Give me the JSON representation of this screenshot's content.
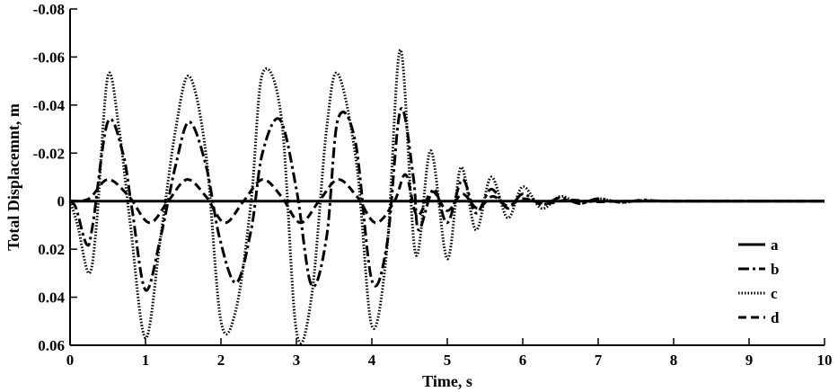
{
  "chart_data": {
    "type": "line",
    "xlabel": "Time, s",
    "ylabel": "Total Displacemnt, m",
    "xlim": [
      0,
      10
    ],
    "ylim": [
      -0.08,
      0.06
    ],
    "y_axis_inverted": true,
    "grid": false,
    "legend_position": "right",
    "x_ticks": [
      "0",
      "1",
      "2",
      "3",
      "4",
      "5",
      "6",
      "7",
      "8",
      "9",
      "10"
    ],
    "y_ticks": [
      "-0.08",
      "-0.06",
      "-0.04",
      "-0.02",
      "0",
      "0.02",
      "0.04",
      "0.06"
    ],
    "series": [
      {
        "name": "a",
        "style": "solid",
        "x": [
          0,
          10
        ],
        "y": [
          0,
          0
        ]
      },
      {
        "name": "b",
        "style": "dash-dot",
        "x": [
          0,
          0.08,
          0.22,
          0.3,
          0.5,
          0.7,
          0.82,
          1.0,
          1.2,
          1.4,
          1.58,
          1.8,
          1.98,
          2.2,
          2.4,
          2.55,
          2.78,
          3.0,
          3.2,
          3.4,
          3.55,
          3.78,
          4.0,
          4.2,
          4.38,
          4.55,
          4.62,
          4.82,
          5.0,
          5.2,
          5.38,
          5.58,
          5.8,
          6.0,
          6.25,
          6.5,
          6.75,
          7.0,
          7.3,
          7.6,
          8.0,
          10.0
        ],
        "y": [
          0,
          0.003,
          0.018,
          0.01,
          -0.033,
          -0.02,
          0.003,
          0.037,
          0.015,
          -0.015,
          -0.033,
          -0.015,
          0.015,
          0.034,
          0.012,
          -0.02,
          -0.034,
          -0.005,
          0.035,
          0.015,
          -0.034,
          -0.025,
          0.033,
          0.018,
          -0.038,
          -0.01,
          0.012,
          -0.005,
          0.009,
          -0.009,
          0.005,
          -0.005,
          0.003,
          -0.003,
          0.0015,
          -0.0015,
          0.001,
          -0.001,
          0.0005,
          -0.0005,
          0,
          0
        ]
      },
      {
        "name": "c",
        "style": "dotted",
        "x": [
          0,
          0.1,
          0.25,
          0.35,
          0.5,
          0.65,
          0.8,
          1.0,
          1.2,
          1.4,
          1.58,
          1.8,
          2.0,
          2.2,
          2.4,
          2.55,
          2.8,
          3.0,
          3.2,
          3.4,
          3.55,
          3.8,
          4.0,
          4.2,
          4.38,
          4.58,
          4.78,
          5.0,
          5.18,
          5.38,
          5.58,
          5.8,
          6.0,
          6.25,
          6.5,
          6.75,
          7.0,
          7.3,
          7.6,
          8.0,
          10.0
        ],
        "y": [
          0,
          0.01,
          0.03,
          0.01,
          -0.052,
          -0.03,
          0.01,
          0.057,
          0.015,
          -0.03,
          -0.052,
          -0.02,
          0.05,
          0.045,
          0.0,
          -0.053,
          -0.035,
          0.054,
          0.04,
          -0.03,
          -0.053,
          -0.015,
          0.052,
          0.02,
          -0.063,
          0.022,
          -0.021,
          0.024,
          -0.014,
          0.012,
          -0.01,
          0.007,
          -0.006,
          0.003,
          -0.002,
          0.001,
          -0.001,
          0.0005,
          -0.0003,
          0,
          0
        ]
      },
      {
        "name": "d",
        "style": "dashed",
        "x": [
          0,
          0.25,
          0.5,
          0.78,
          1.05,
          1.3,
          1.55,
          1.8,
          2.05,
          2.3,
          2.55,
          2.8,
          3.05,
          3.3,
          3.55,
          3.8,
          4.05,
          4.3,
          4.45,
          4.6,
          4.8,
          5.0,
          5.2,
          5.4,
          5.6,
          5.8,
          6.0,
          6.3,
          6.6,
          7.0,
          7.5,
          10.0
        ],
        "y": [
          0,
          -0.001,
          -0.009,
          -0.002,
          0.009,
          0.0,
          -0.009,
          -0.002,
          0.009,
          0.0,
          -0.009,
          -0.002,
          0.009,
          0.0,
          -0.009,
          -0.002,
          0.009,
          0.0,
          -0.011,
          0.006,
          -0.004,
          0.004,
          -0.003,
          0.003,
          -0.002,
          0.002,
          -0.001,
          0.001,
          -0.0005,
          0.0003,
          0,
          0
        ]
      }
    ]
  }
}
